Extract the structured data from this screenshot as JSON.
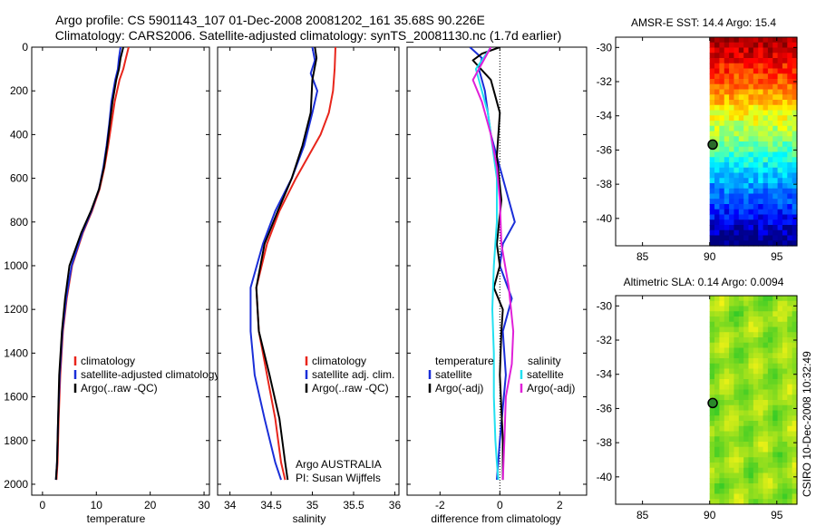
{
  "header": {
    "line1": "Argo profile: CS 5901143_107 01-Dec-2008 20081202_161 35.68S 90.226E",
    "line2": "Climatology: CARS2006. Satellite-adjusted climatology: synTS_20081130.nc (1.7d earlier)"
  },
  "footer": {
    "credit": "CSIRO 10-Dec-2008 10:32:49",
    "argo_line1": "Argo AUSTRALIA",
    "argo_line2": "PI: Susan Wijffels"
  },
  "colors": {
    "climatology": "#e8251b",
    "satellite": "#1a2ed8",
    "argo": "#000000",
    "sat_salinity": "#22e0f0",
    "argo_adj_salinity": "#e020d8",
    "marker_sst": "#2a6a2a",
    "marker_sla": "#2a8a2a"
  },
  "chart_data": [
    {
      "type": "line",
      "panel": "temperature",
      "xlabel": "temperature",
      "ylabel": "",
      "xlim": [
        -2,
        31
      ],
      "ylim": [
        2050,
        0
      ],
      "xticks": [
        0,
        10,
        20,
        30
      ],
      "yticks": [
        0,
        200,
        400,
        600,
        800,
        1000,
        1200,
        1400,
        1600,
        1800,
        2000
      ],
      "legend": {
        "placement": "lower-middle",
        "entries": [
          "climatology",
          "satellite-adjusted climatology",
          "Argo(..raw -QC)"
        ]
      },
      "series": [
        {
          "name": "climatology",
          "color_key": "climatology",
          "x": [
            16,
            15.5,
            15,
            14.3,
            13.4,
            12.8,
            12.2,
            11.5,
            10.6,
            9.2,
            7.5,
            5.5,
            4.5,
            3.8,
            3.3,
            3.0,
            2.8,
            2.6
          ],
          "y": [
            0,
            50,
            100,
            150,
            250,
            350,
            450,
            550,
            650,
            750,
            850,
            1000,
            1150,
            1300,
            1500,
            1700,
            1900,
            1980
          ]
        },
        {
          "name": "satellite-adjusted climatology",
          "color_key": "satellite",
          "x": [
            14.5,
            14.2,
            14.0,
            13.5,
            12.8,
            12.4,
            11.9,
            11.3,
            10.5,
            9.1,
            7.4,
            5.4,
            4.4,
            3.7,
            3.2,
            2.9,
            2.7,
            2.5
          ],
          "y": [
            0,
            50,
            100,
            150,
            250,
            350,
            450,
            550,
            650,
            750,
            850,
            1000,
            1150,
            1300,
            1500,
            1700,
            1900,
            1980
          ]
        },
        {
          "name": "Argo(..raw -QC)",
          "color_key": "argo",
          "x": [
            15,
            14.5,
            14.2,
            13.7,
            13.0,
            12.5,
            12.0,
            11.4,
            10.5,
            9.0,
            7.2,
            5.0,
            4.2,
            3.6,
            3.1,
            2.9,
            2.7,
            2.5
          ],
          "y": [
            0,
            50,
            100,
            150,
            250,
            350,
            450,
            550,
            650,
            750,
            850,
            1000,
            1150,
            1300,
            1500,
            1700,
            1900,
            1980
          ]
        }
      ]
    },
    {
      "type": "line",
      "panel": "salinity",
      "xlabel": "salinity",
      "ylabel": "",
      "xlim": [
        33.85,
        36.05
      ],
      "ylim": [
        2050,
        0
      ],
      "xticks": [
        34,
        34.5,
        35,
        35.5,
        36
      ],
      "xtick_labels": [
        "34",
        "34.5",
        "35",
        "35.5",
        "36"
      ],
      "legend": {
        "placement": "lower-right",
        "entries": [
          "climatology",
          "satellite adj. clim.",
          "Argo(..raw -QC)"
        ]
      },
      "series": [
        {
          "name": "climatology",
          "color_key": "climatology",
          "x": [
            35.28,
            35.27,
            35.25,
            35.2,
            35.1,
            34.95,
            34.8,
            34.6,
            34.45,
            34.32,
            34.35,
            34.45,
            34.55,
            34.62,
            34.67
          ],
          "y": [
            0,
            100,
            200,
            300,
            400,
            500,
            600,
            750,
            900,
            1100,
            1300,
            1500,
            1700,
            1900,
            1980
          ]
        },
        {
          "name": "satellite adj. clim.",
          "color_key": "satellite",
          "x": [
            35.0,
            35.03,
            34.98,
            35.06,
            35.0,
            34.9,
            34.75,
            34.55,
            34.4,
            34.25,
            34.25,
            34.3,
            34.42,
            34.55,
            34.62
          ],
          "y": [
            0,
            60,
            120,
            200,
            300,
            450,
            600,
            750,
            900,
            1100,
            1300,
            1500,
            1700,
            1900,
            1980
          ]
        },
        {
          "name": "Argo(..raw -QC)",
          "color_key": "argo",
          "x": [
            35.03,
            35.05,
            35.0,
            34.98,
            34.88,
            34.75,
            34.58,
            34.42,
            34.32,
            34.35,
            34.48,
            34.6,
            34.67,
            34.7
          ],
          "y": [
            0,
            50,
            150,
            300,
            450,
            600,
            750,
            900,
            1100,
            1300,
            1500,
            1700,
            1900,
            1980
          ]
        }
      ]
    },
    {
      "type": "line",
      "panel": "difference",
      "xlabel": "difference from climatology",
      "ylabel": "",
      "xlim": [
        -3.1,
        2.9
      ],
      "ylim": [
        2050,
        0
      ],
      "xticks": [
        -2,
        0,
        2
      ],
      "xtick_labels": [
        "-2",
        "0",
        "2"
      ],
      "legend": {
        "placement": "lower-middle",
        "groups": [
          {
            "title": "temperature",
            "entries": [
              "satellite",
              "Argo(-adj)"
            ]
          },
          {
            "title": "salinity",
            "entries": [
              "satellite",
              "Argo(-adj)"
            ]
          }
        ]
      },
      "series": [
        {
          "name": "temperature satellite",
          "color_key": "satellite",
          "x": [
            -1.0,
            -0.6,
            -0.7,
            -0.5,
            -0.3,
            0.0,
            0.3,
            0.5,
            0.1,
            0.0,
            0.4,
            0.1,
            0.2,
            0.0,
            -0.1
          ],
          "y": [
            0,
            50,
            100,
            200,
            400,
            550,
            700,
            800,
            900,
            1000,
            1150,
            1300,
            1500,
            1800,
            1980
          ]
        },
        {
          "name": "temperature Argo(-adj)",
          "color_key": "argo",
          "x": [
            0.0,
            -0.6,
            -0.9,
            -0.3,
            0.0,
            -0.1,
            0.05,
            -0.1,
            0.0,
            -0.2,
            0.1,
            0.05,
            0.0,
            0.1,
            0.1
          ],
          "y": [
            0,
            30,
            60,
            150,
            300,
            500,
            700,
            900,
            1000,
            1100,
            1200,
            1300,
            1500,
            1800,
            1980
          ]
        },
        {
          "name": "salinity satellite",
          "color_key": "sat_salinity",
          "x": [
            -0.3,
            -0.8,
            -0.6,
            -0.4,
            -0.25,
            -0.1,
            -0.1,
            -0.2,
            -0.25,
            -0.2,
            -0.2,
            -0.15,
            -0.1,
            -0.05
          ],
          "y": [
            0,
            100,
            200,
            300,
            450,
            600,
            800,
            1000,
            1200,
            1400,
            1600,
            1800,
            1900,
            1980
          ]
        },
        {
          "name": "salinity Argo(-adj)",
          "color_key": "argo_adj_salinity",
          "x": [
            -0.3,
            -0.5,
            -0.9,
            -0.6,
            -0.3,
            -0.1,
            0.0,
            0.05,
            0.3,
            0.45,
            0.4,
            0.2,
            0.15,
            0.1
          ],
          "y": [
            0,
            50,
            150,
            250,
            400,
            550,
            700,
            900,
            1100,
            1300,
            1450,
            1600,
            1800,
            1980
          ]
        }
      ],
      "reference_line": {
        "x": 0,
        "style": "dotted"
      }
    },
    {
      "type": "heatmap",
      "panel": "sst-map",
      "title": "AMSR-E SST: 14.4 Argo: 15.4",
      "xlim": [
        83,
        96.5
      ],
      "ylim": [
        -41.6,
        -29.4
      ],
      "xticks": [
        85,
        90,
        95
      ],
      "yticks": [
        -30,
        -32,
        -34,
        -36,
        -38,
        -40
      ],
      "data_x_start": 90,
      "marker": {
        "lon": 90.226,
        "lat": -35.68
      },
      "colormap": "jet, warm at north (-30) to cold at south (-41)"
    },
    {
      "type": "heatmap",
      "panel": "sla-map",
      "title": "Altimetric SLA: 0.14 Argo: 0.0094",
      "xlim": [
        83,
        96.5
      ],
      "ylim": [
        -41.6,
        -29.4
      ],
      "xticks": [
        85,
        90,
        95
      ],
      "yticks": [
        -30,
        -32,
        -34,
        -36,
        -38,
        -40
      ],
      "data_x_start": 90,
      "marker": {
        "lon": 90.226,
        "lat": -35.68
      },
      "colormap": "green/yellow"
    }
  ]
}
